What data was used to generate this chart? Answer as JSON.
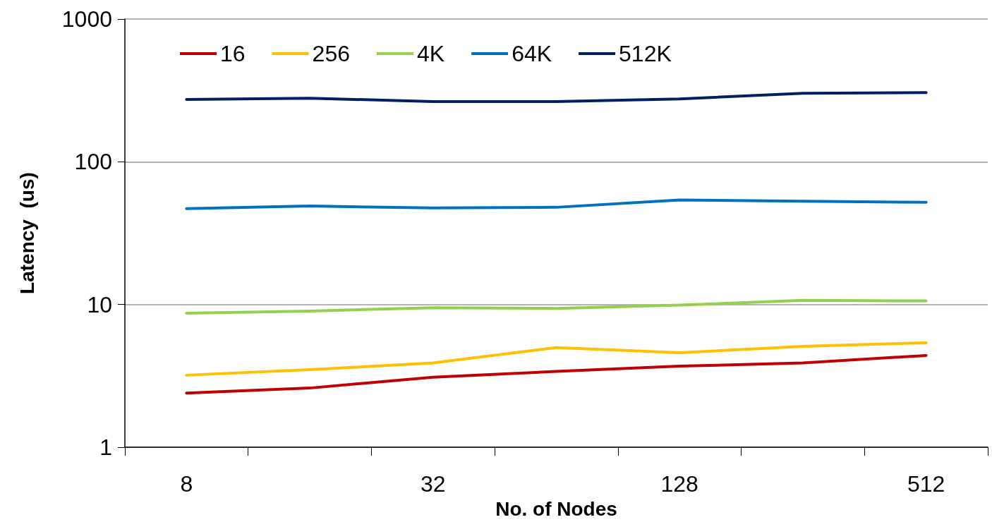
{
  "chart_data": {
    "type": "line",
    "xlabel": "No. of Nodes",
    "ylabel": "Latency  (us)",
    "categories": [
      "8",
      null,
      "32",
      null,
      "128",
      null,
      "512"
    ],
    "series": [
      {
        "name": "16",
        "color": "#c00000",
        "values": [
          2.4,
          2.6,
          3.1,
          3.4,
          3.7,
          3.9,
          4.4
        ]
      },
      {
        "name": "256",
        "color": "#ffc000",
        "values": [
          3.2,
          3.5,
          3.9,
          5.0,
          4.6,
          5.1,
          5.4
        ]
      },
      {
        "name": "4K",
        "color": "#92d050",
        "values": [
          8.7,
          9.0,
          9.5,
          9.4,
          9.9,
          10.7,
          10.6
        ]
      },
      {
        "name": "64K",
        "color": "#0070c0",
        "values": [
          47,
          49,
          47.5,
          48,
          54,
          53,
          52
        ]
      },
      {
        "name": "512K",
        "color": "#002060",
        "values": [
          273,
          279,
          264,
          264,
          276,
          302,
          305
        ]
      }
    ],
    "log": "y",
    "ylim": [
      1,
      1000
    ],
    "yticks": [
      1,
      10,
      100,
      1000
    ],
    "grid": "y",
    "legend": "top left",
    "marker": "none",
    "line_style": "solid"
  }
}
